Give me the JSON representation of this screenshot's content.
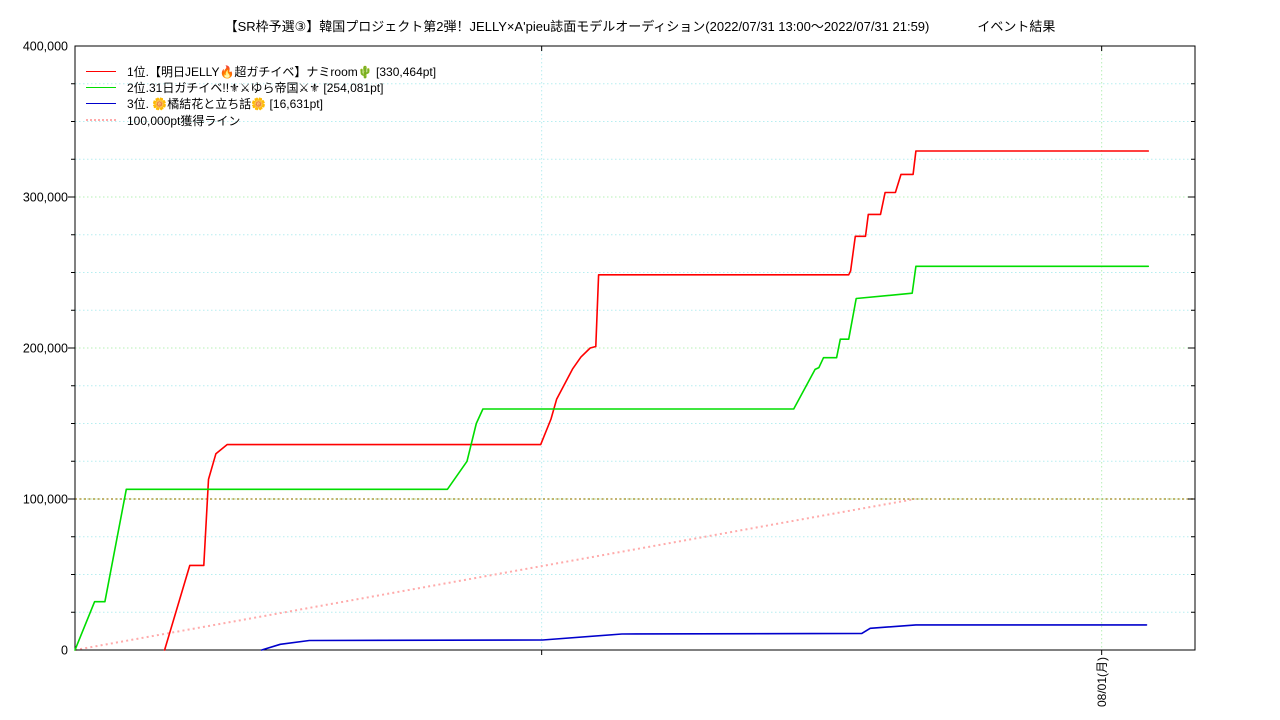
{
  "page": {
    "title_main": "【SR枠予選③】韓国プロジェクト第2弾！JELLY×A'pieu誌面モデルオーディション(2022/07/31 13:00〜2022/07/31 21:59)",
    "title_right": "イベント結果"
  },
  "chart_data": {
    "type": "line",
    "title": "【SR枠予選③】韓国プロジェクト第2弾！JELLY×A'pieu誌面モデルオーディション(2022/07/31 13:00〜2022/07/31 21:59) イベント結果",
    "x_axis": {
      "unit": "time",
      "start": "2022/07/31 13:00",
      "end": "2022/08/01 01:00",
      "hours_span": 12,
      "ticks": [
        {
          "hour": 5,
          "label": ""
        },
        {
          "hour": 11,
          "label": "08/01(月)"
        }
      ]
    },
    "y_axis": {
      "min": 0,
      "max": 400000,
      "major_step": 100000,
      "minor_step": 25000,
      "major_labels": [
        "0",
        "100,000",
        "200,000",
        "300,000",
        "400,000"
      ]
    },
    "grid": {
      "minor_color": "#b6eef0",
      "major_color": "#b6f0b6",
      "goal_color": "#b09a40",
      "pace_color": "#ffaaaa",
      "border_color": "#000000"
    },
    "goal_line": {
      "label": "100,000pt獲得ライン",
      "value": 100000,
      "pace_from_hour": 0,
      "pace_to_hour": 9
    },
    "series": [
      {
        "name": "1位.【明日JELLY🔥超ガチイベ】ナミroom🌵 [330,464pt]",
        "color": "#ff0000",
        "final_pt": 330464,
        "points": [
          [
            0.96,
            0
          ],
          [
            1.23,
            56000
          ],
          [
            1.38,
            56000
          ],
          [
            1.43,
            113000
          ],
          [
            1.51,
            130000
          ],
          [
            1.63,
            136000
          ],
          [
            4.99,
            136000
          ],
          [
            5.1,
            153000
          ],
          [
            5.16,
            166000
          ],
          [
            5.33,
            186000
          ],
          [
            5.42,
            194000
          ],
          [
            5.52,
            200000
          ],
          [
            5.58,
            201000
          ],
          [
            5.61,
            248500
          ],
          [
            8.29,
            248500
          ],
          [
            8.31,
            251000
          ],
          [
            8.36,
            274000
          ],
          [
            8.47,
            274000
          ],
          [
            8.5,
            288500
          ],
          [
            8.63,
            288500
          ],
          [
            8.68,
            303000
          ],
          [
            8.79,
            303000
          ],
          [
            8.85,
            315000
          ],
          [
            8.98,
            315000
          ],
          [
            9.01,
            330464
          ],
          [
            11.5,
            330464
          ]
        ]
      },
      {
        "name": "2位.31日ガチイベ!!⚜⚔ゆら帝国⚔⚜ [254,081pt]",
        "color": "#00dd00",
        "final_pt": 254081,
        "points": [
          [
            0,
            0
          ],
          [
            0.21,
            32000
          ],
          [
            0.32,
            32000
          ],
          [
            0.55,
            106400
          ],
          [
            3.99,
            106400
          ],
          [
            4.2,
            125000
          ],
          [
            4.3,
            150000
          ],
          [
            4.37,
            159600
          ],
          [
            7.7,
            159600
          ],
          [
            7.93,
            185800
          ],
          [
            7.97,
            187000
          ],
          [
            8.02,
            193600
          ],
          [
            8.16,
            193600
          ],
          [
            8.2,
            205800
          ],
          [
            8.29,
            205800
          ],
          [
            8.37,
            232800
          ],
          [
            8.97,
            236300
          ],
          [
            9.01,
            254081
          ],
          [
            11.5,
            254081
          ]
        ]
      },
      {
        "name": "3位. 🌼橘結花と立ち話🌼 [16,631pt]",
        "color": "#0000cc",
        "final_pt": 16631,
        "points": [
          [
            2.0,
            0
          ],
          [
            2.2,
            3800
          ],
          [
            2.51,
            6300
          ],
          [
            5.01,
            6600
          ],
          [
            5.86,
            10600
          ],
          [
            8.43,
            11000
          ],
          [
            8.52,
            14400
          ],
          [
            9.01,
            16631
          ],
          [
            11.48,
            16631
          ]
        ]
      }
    ]
  }
}
